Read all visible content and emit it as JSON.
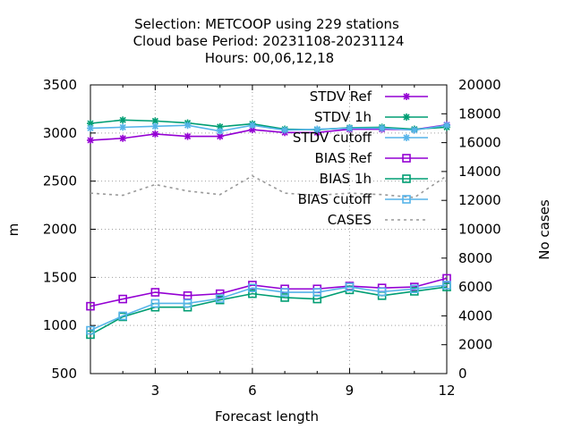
{
  "chart_data": {
    "type": "line",
    "title_lines": [
      "Selection: METCOOP using   229 stations",
      "Cloud base   Period: 20231108-20231124",
      "Hours:  00,06,12,18"
    ],
    "xlabel": "Forecast length",
    "ylabel": "m",
    "y2label": "No cases",
    "xlim": [
      1,
      12
    ],
    "ylim": [
      500,
      3500
    ],
    "y2lim": [
      0,
      20000
    ],
    "xticks": [
      3,
      6,
      9,
      12
    ],
    "yticks": [
      500,
      1000,
      1500,
      2000,
      2500,
      3000,
      3500
    ],
    "y2ticks": [
      0,
      2000,
      4000,
      6000,
      8000,
      10000,
      12000,
      14000,
      16000,
      18000,
      20000
    ],
    "grid": true,
    "legend_position": "top-right",
    "x": [
      1,
      2,
      3,
      4,
      5,
      6,
      7,
      8,
      9,
      10,
      11,
      12
    ],
    "series": [
      {
        "name": "STDV Ref",
        "axis": "y1",
        "color": "#9400d3",
        "marker": "star",
        "dash": false,
        "values": [
          2925,
          2945,
          2990,
          2965,
          2965,
          3035,
          3005,
          3005,
          3040,
          3040,
          3035,
          3085
        ]
      },
      {
        "name": "STDV 1h",
        "axis": "y1",
        "color": "#009e73",
        "marker": "star",
        "dash": false,
        "values": [
          3100,
          3135,
          3125,
          3105,
          3065,
          3095,
          3040,
          3035,
          3055,
          3060,
          3040,
          3060
        ]
      },
      {
        "name": "STDV cutoff",
        "axis": "y1",
        "color": "#56b4e9",
        "marker": "star",
        "dash": false,
        "values": [
          3050,
          3060,
          3070,
          3080,
          3020,
          3080,
          3030,
          3040,
          3050,
          3050,
          3030,
          3080
        ]
      },
      {
        "name": "BIAS Ref",
        "axis": "y1",
        "color": "#9400d3",
        "marker": "square",
        "dash": false,
        "values": [
          1200,
          1275,
          1345,
          1310,
          1330,
          1420,
          1380,
          1380,
          1410,
          1390,
          1400,
          1490
        ]
      },
      {
        "name": "BIAS 1h",
        "axis": "y1",
        "color": "#009e73",
        "marker": "square",
        "dash": false,
        "values": [
          905,
          1090,
          1190,
          1190,
          1265,
          1330,
          1290,
          1275,
          1370,
          1310,
          1355,
          1400
        ]
      },
      {
        "name": "BIAS cutoff",
        "axis": "y1",
        "color": "#56b4e9",
        "marker": "square",
        "dash": false,
        "values": [
          950,
          1100,
          1230,
          1230,
          1280,
          1390,
          1345,
          1345,
          1400,
          1350,
          1380,
          1420
        ]
      },
      {
        "name": "CASES",
        "axis": "y2",
        "color": "#999999",
        "marker": "none",
        "dash": true,
        "values": [
          12500,
          12350,
          13100,
          12650,
          12400,
          13700,
          12500,
          12350,
          12500,
          12400,
          12200,
          13700
        ]
      }
    ]
  }
}
